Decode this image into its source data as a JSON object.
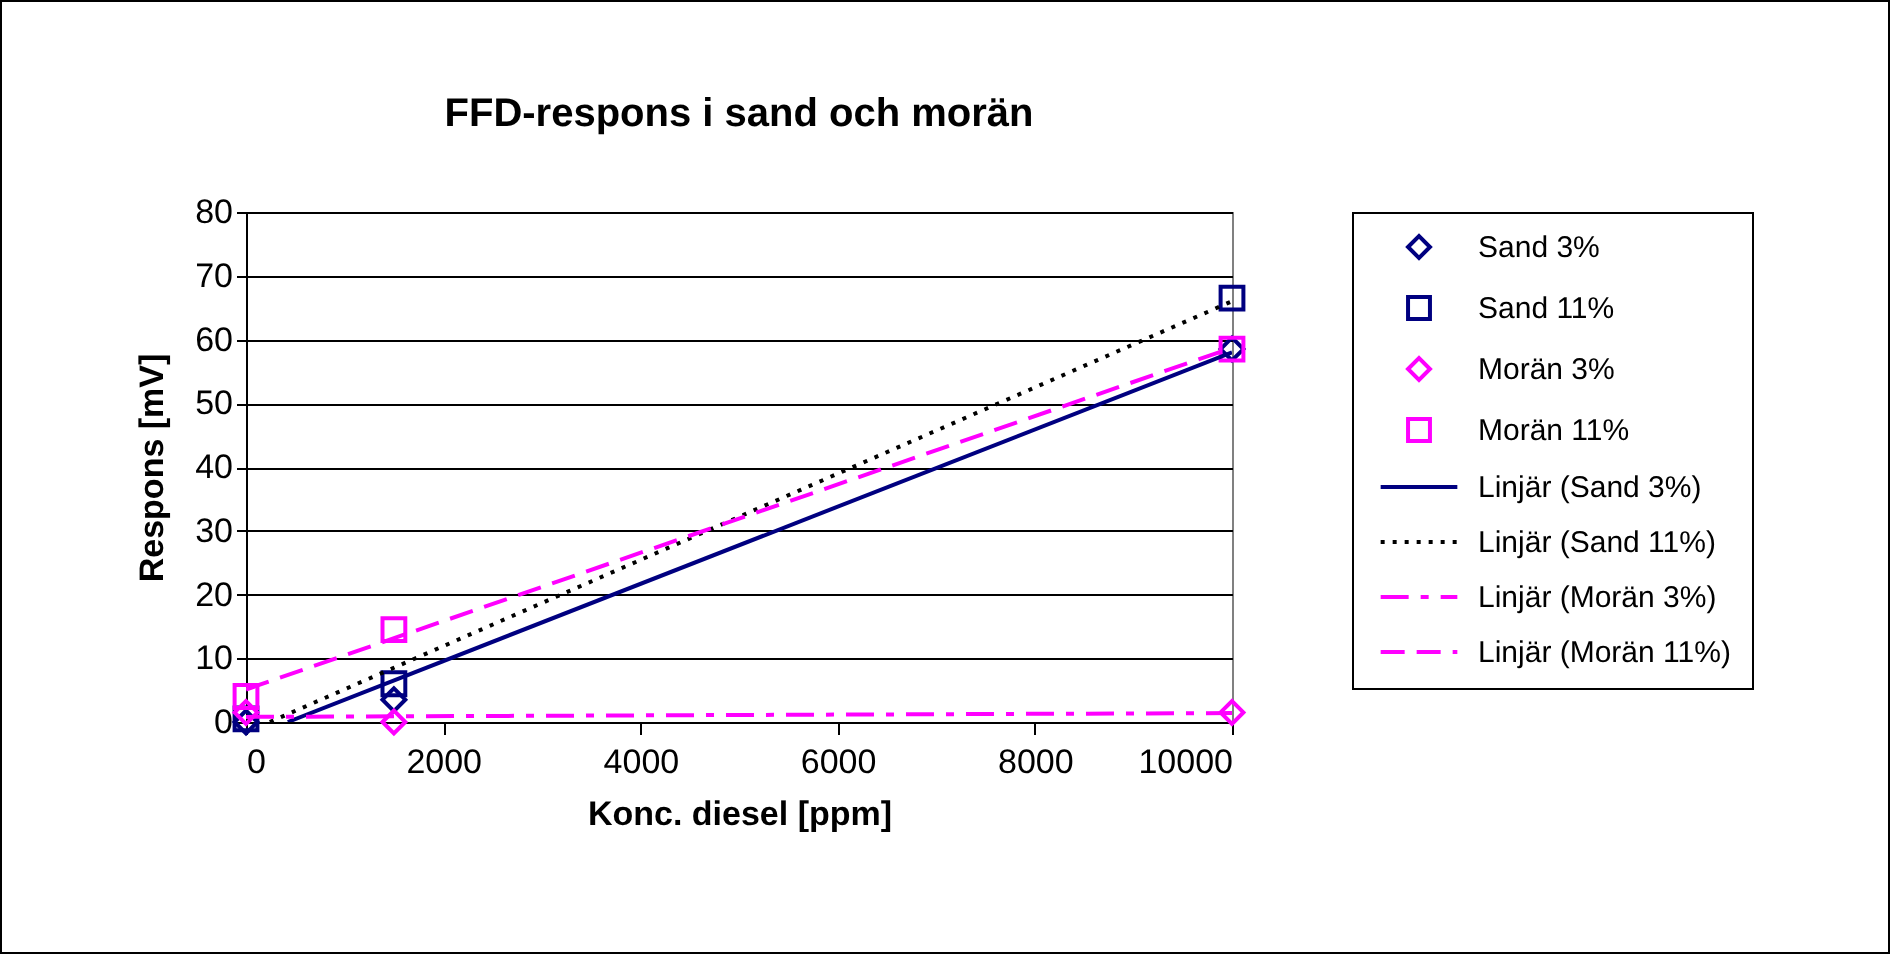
{
  "chart_data": {
    "type": "scatter",
    "title": "FFD-respons i sand och morän",
    "xlabel": "Konc. diesel [ppm]",
    "ylabel": "Respons [mV]",
    "xlim": [
      0,
      10000
    ],
    "xticks": [
      0,
      2000,
      4000,
      6000,
      8000,
      10000
    ],
    "ylim": [
      0,
      80
    ],
    "yticks": [
      0,
      10,
      20,
      30,
      40,
      50,
      60,
      70,
      80
    ],
    "grid": "y",
    "legend": "right",
    "series": [
      {
        "name": "Sand 3%",
        "marker": "diamond",
        "color": "#000080",
        "x": [
          0,
          1500,
          10000
        ],
        "values": [
          0,
          3.5,
          58.5
        ]
      },
      {
        "name": "Sand 11%",
        "marker": "square",
        "color": "#000080",
        "x": [
          0,
          1500,
          10000
        ],
        "values": [
          0.5,
          6,
          66.5
        ]
      },
      {
        "name": "Morän 3%",
        "marker": "diamond",
        "color": "#ff00ff",
        "x": [
          0,
          1500,
          10000
        ],
        "values": [
          1.5,
          0,
          1.5
        ]
      },
      {
        "name": "Morän 11%",
        "marker": "square",
        "color": "#ff00ff",
        "x": [
          0,
          1500,
          10000
        ],
        "values": [
          4,
          14.5,
          58.5
        ]
      },
      {
        "name": "Linjär (Sand 3%)",
        "type": "line",
        "line_style": "solid",
        "color": "#000080",
        "x": [
          424,
          10000
        ],
        "values": [
          0,
          58
        ]
      },
      {
        "name": "Linjär (Sand 11%)",
        "type": "line",
        "line_style": "dotted",
        "color": "#000000",
        "x": [
          242,
          10000
        ],
        "values": [
          0,
          66
        ]
      },
      {
        "name": "Linjär (Morän 3%)",
        "type": "line",
        "line_style": "dashed",
        "color": "#ff00ff",
        "x": [
          0,
          10000
        ],
        "values": [
          0.8,
          1.4
        ]
      },
      {
        "name": "Linjär (Morän 11%)",
        "type": "line",
        "line_style": "dashed",
        "color": "#ff00ff",
        "x": [
          0,
          10000
        ],
        "values": [
          5.1,
          58.7
        ]
      }
    ]
  }
}
